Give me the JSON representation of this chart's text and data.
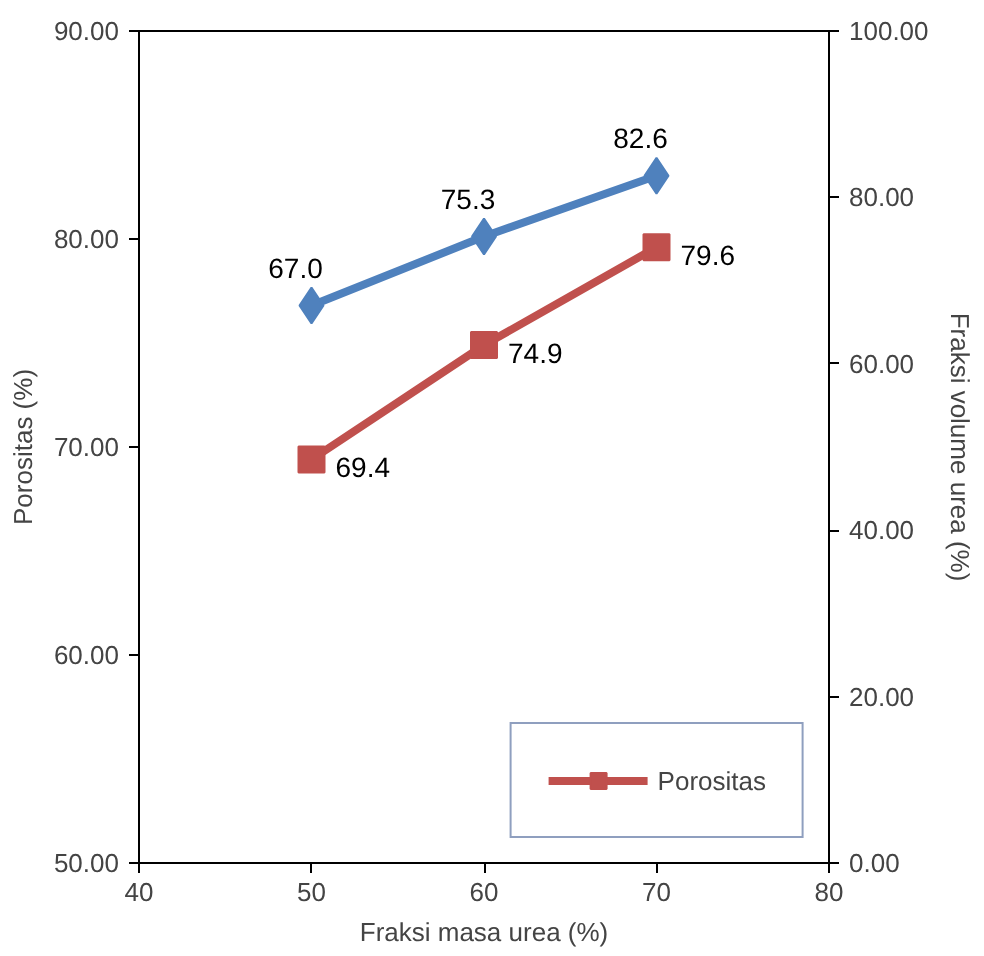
{
  "chart_data": {
    "type": "line",
    "xlabel": "Fraksi masa urea (%)",
    "ylabel": "Porositas (%)",
    "y2label": "Fraksi volume urea (%)",
    "x": [
      50,
      60,
      70
    ],
    "series": [
      {
        "color": "#4f81bd",
        "values": [
          67.0,
          75.3,
          82.6
        ],
        "value_labels": [
          "67.0",
          "75.3",
          "82.6"
        ],
        "axis": "y2",
        "marker": "diamond"
      },
      {
        "name": "Porositas",
        "color": "#c0504d",
        "values": [
          69.4,
          74.9,
          79.6
        ],
        "value_labels": [
          "69.4",
          "74.9",
          "79.6"
        ],
        "marker": "square"
      }
    ],
    "xlim": [
      40,
      80
    ],
    "xticks": [
      40,
      50,
      60,
      70,
      80
    ],
    "ylim": [
      50,
      90
    ],
    "yticks": [
      {
        "value": 50,
        "label": "50.00"
      },
      {
        "value": 60,
        "label": "60.00"
      },
      {
        "value": 70,
        "label": "70.00"
      },
      {
        "value": 80,
        "label": "80.00"
      },
      {
        "value": 90,
        "label": "90.00"
      }
    ],
    "y2lim": [
      0,
      100
    ],
    "y2ticks": [
      {
        "value": 0,
        "label": "0.00"
      },
      {
        "value": 20,
        "label": "20.00"
      },
      {
        "value": 40,
        "label": "40.00"
      },
      {
        "value": 60,
        "label": "60.00"
      },
      {
        "value": 80,
        "label": "80.00"
      },
      {
        "value": 100,
        "label": "100.00"
      }
    ],
    "grid": false,
    "legend": "bottom right"
  }
}
